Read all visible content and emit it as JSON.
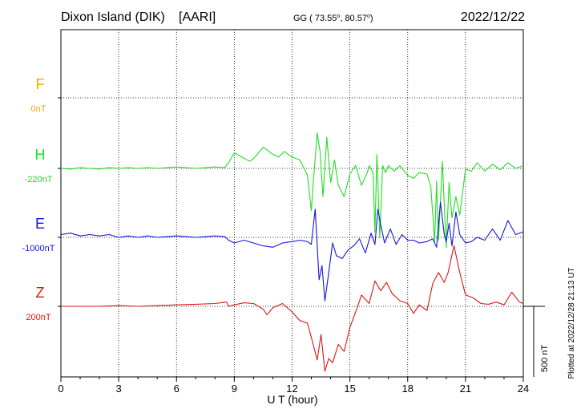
{
  "header": {
    "station": "Dixon Island (DIK)",
    "institute": "[AARI]",
    "gg_prefix": "GG ( 73.55",
    "gg_mid": ",  80.57",
    "gg_suffix": ")",
    "degree_mark": "o",
    "date": "2022/12/22"
  },
  "side_note": "Plotted at 2022/12/28 21:13 UT",
  "scale_label": "500 nT",
  "chart_data": {
    "type": "line",
    "xlabel": "U T (hour)",
    "xlim": [
      0,
      24
    ],
    "xticks": [
      "0",
      "3",
      "6",
      "9",
      "12",
      "15",
      "18",
      "21",
      "24"
    ],
    "scale_nT": 500,
    "grid": true,
    "series": [
      {
        "name": "F",
        "baseline_label": "0nT",
        "color": "#f5a800",
        "x": [],
        "y": []
      },
      {
        "name": "H",
        "baseline_label": "-220nT",
        "color": "#22dd22",
        "x": [
          0,
          0.5,
          1,
          1.5,
          2,
          2.5,
          3,
          3.5,
          4,
          4.5,
          5,
          5.5,
          6,
          6.5,
          7,
          7.5,
          8,
          8.5,
          8.7,
          9,
          9.4,
          9.8,
          10,
          10.5,
          11,
          11.3,
          11.6,
          12,
          12.4,
          12.8,
          13,
          13.1,
          13.3,
          13.45,
          13.6,
          13.8,
          14,
          14.2,
          14.4,
          14.7,
          15,
          15.3,
          15.6,
          15.9,
          16,
          16.2,
          16.3,
          16.4,
          16.55,
          16.7,
          16.85,
          17,
          17.3,
          17.6,
          18,
          18.3,
          18.6,
          19,
          19.2,
          19.4,
          19.5,
          19.6,
          19.8,
          20,
          20.15,
          20.3,
          20.5,
          20.7,
          21,
          21.3,
          21.6,
          22,
          22.4,
          22.8,
          23.2,
          23.6,
          24
        ],
        "y": [
          0,
          -5,
          5,
          0,
          -5,
          5,
          0,
          5,
          0,
          5,
          0,
          5,
          10,
          5,
          0,
          5,
          10,
          5,
          40,
          110,
          80,
          50,
          70,
          150,
          100,
          80,
          120,
          80,
          60,
          -50,
          -300,
          -100,
          250,
          120,
          -200,
          220,
          -100,
          60,
          -120,
          -200,
          -40,
          20,
          -120,
          -30,
          20,
          -30,
          -450,
          100,
          -490,
          20,
          -30,
          20,
          -20,
          20,
          -50,
          -70,
          -30,
          -40,
          -130,
          -520,
          -90,
          -510,
          50,
          -560,
          -100,
          -350,
          -200,
          -330,
          -5,
          -20,
          40,
          -20,
          30,
          -10,
          40,
          0,
          20
        ]
      },
      {
        "name": "E",
        "baseline_label": "-1000nT",
        "color": "#1515dd",
        "x": [
          0,
          0.5,
          1,
          1.5,
          2,
          2.5,
          3,
          3.5,
          4,
          4.5,
          5,
          5.5,
          6,
          6.5,
          7,
          7.5,
          8,
          8.5,
          8.7,
          9,
          9.5,
          10,
          10.5,
          11,
          11.5,
          12,
          12.4,
          12.8,
          13,
          13.2,
          13.4,
          13.55,
          13.7,
          13.9,
          14.1,
          14.3,
          14.6,
          14.9,
          15.2,
          15.5,
          15.8,
          16.1,
          16.3,
          16.45,
          16.6,
          16.8,
          17.1,
          17.4,
          17.7,
          18,
          18.3,
          18.6,
          19,
          19.3,
          19.5,
          19.7,
          19.9,
          20,
          20.15,
          20.3,
          20.5,
          20.7,
          21,
          21.3,
          21.6,
          22,
          22.4,
          22.8,
          23.2,
          23.6,
          24
        ],
        "y": [
          20,
          30,
          10,
          20,
          10,
          20,
          0,
          10,
          0,
          10,
          0,
          5,
          10,
          5,
          0,
          5,
          10,
          5,
          -20,
          -40,
          -20,
          -40,
          -60,
          -70,
          -40,
          -30,
          -20,
          -30,
          -50,
          200,
          -300,
          -200,
          -450,
          -250,
          -40,
          -130,
          -150,
          -90,
          -60,
          -10,
          -110,
          30,
          -50,
          200,
          90,
          -40,
          60,
          -50,
          20,
          -20,
          -20,
          -40,
          -30,
          -10,
          -70,
          250,
          20,
          -30,
          100,
          -60,
          180,
          20,
          -40,
          -30,
          0,
          -20,
          60,
          -20,
          120,
          20,
          40
        ]
      },
      {
        "name": "Z",
        "baseline_label": "200nT",
        "color": "#dd1515",
        "x": [
          0,
          1,
          2,
          3,
          4,
          5,
          6,
          7,
          8,
          8.6,
          8.7,
          9,
          9.5,
          10,
          10.5,
          10.7,
          11,
          11.5,
          12,
          12.4,
          12.8,
          13,
          13.3,
          13.5,
          13.7,
          13.9,
          14.1,
          14.4,
          14.7,
          15,
          15.3,
          15.6,
          16,
          16.3,
          16.6,
          16.9,
          17.2,
          17.6,
          18,
          18.3,
          18.6,
          19,
          19.3,
          19.6,
          19.9,
          20.1,
          20.4,
          20.7,
          21,
          21.4,
          21.8,
          22.2,
          22.6,
          23,
          23.4,
          23.8,
          24
        ],
        "y": [
          0,
          0,
          0,
          5,
          0,
          5,
          10,
          15,
          20,
          30,
          0,
          10,
          25,
          20,
          -20,
          -60,
          -10,
          20,
          -40,
          -100,
          -120,
          -220,
          -380,
          -200,
          -460,
          -370,
          -400,
          -270,
          -320,
          -150,
          -40,
          80,
          20,
          180,
          110,
          170,
          90,
          40,
          20,
          -50,
          10,
          -30,
          160,
          240,
          170,
          240,
          430,
          240,
          80,
          60,
          20,
          15,
          30,
          10,
          100,
          30,
          20
        ]
      }
    ]
  }
}
